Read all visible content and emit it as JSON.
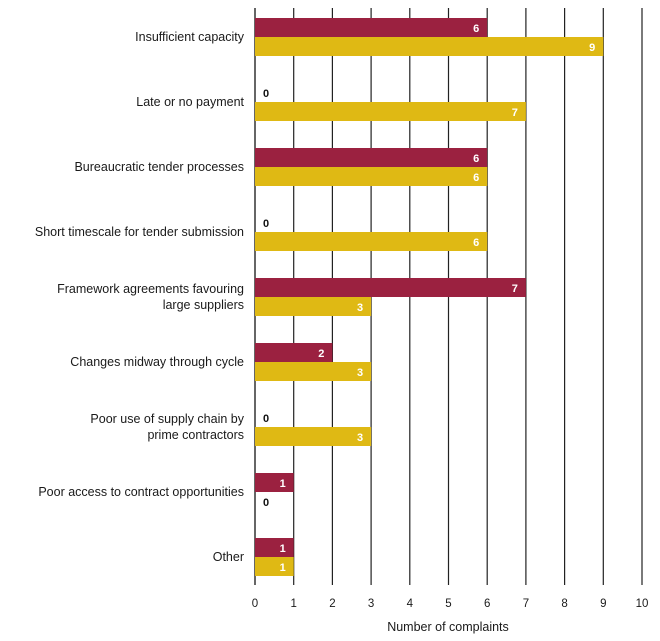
{
  "chart_data": {
    "type": "bar",
    "orientation": "horizontal",
    "title": "",
    "xlabel": "Number of complaints",
    "ylabel": "",
    "xlim": [
      0,
      10
    ],
    "xticks": [
      0,
      1,
      2,
      3,
      4,
      5,
      6,
      7,
      8,
      9,
      10
    ],
    "grid": "vertical",
    "legend": "none",
    "categories": [
      [
        "Insufficient capacity"
      ],
      [
        "Late or no payment"
      ],
      [
        "Bureaucratic tender processes"
      ],
      [
        "Short timescale for tender submission"
      ],
      [
        "Framework agreements favouring",
        "large suppliers"
      ],
      [
        "Changes midway through cycle"
      ],
      [
        "Poor use of supply chain by",
        "prime contractors"
      ],
      [
        "Poor access to contract opportunities"
      ],
      [
        "Other"
      ]
    ],
    "series": [
      {
        "name": "Series 1",
        "color": "#9b2140",
        "values": [
          6,
          0,
          6,
          0,
          7,
          2,
          0,
          1,
          1
        ]
      },
      {
        "name": "Series 2",
        "color": "#dfb914",
        "values": [
          9,
          7,
          6,
          6,
          3,
          3,
          3,
          0,
          1
        ]
      }
    ]
  }
}
